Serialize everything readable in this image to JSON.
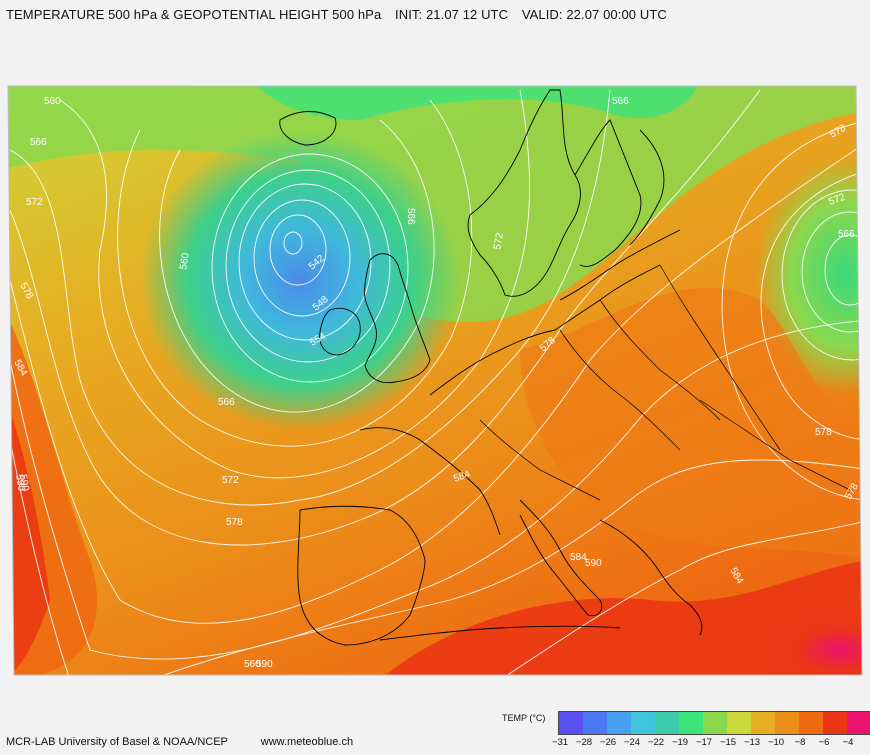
{
  "header": {
    "title": "TEMPERATURE 500 hPa & GEOPOTENTIAL HEIGHT 500 hPa",
    "init": "INIT: 21.07   12 UTC",
    "valid": "VALID:  22.07 00:00 UTC"
  },
  "footer": {
    "credits": "MCR-LAB University of Basel  &  NOAA/NCEP",
    "url": "www.meteoblue.ch"
  },
  "legend": {
    "title": "TEMP (°C)",
    "colors": [
      "#5a50f0",
      "#4a78f0",
      "#4aa0f0",
      "#40c4dc",
      "#3ccaa8",
      "#3ce27a",
      "#8ad84e",
      "#cad83a",
      "#e6ae22",
      "#ec8e1a",
      "#ee6a12",
      "#ea3614",
      "#ec146e"
    ],
    "ticks": [
      "−31",
      "−28",
      "−26",
      "−24",
      "−22",
      "−19",
      "−17",
      "−15",
      "−13",
      "−10",
      "−8",
      "−6",
      "−4"
    ]
  },
  "map": {
    "contour_labels": [
      {
        "text": "560"
      },
      {
        "text": "566"
      },
      {
        "text": "572"
      },
      {
        "text": "578"
      },
      {
        "text": "584"
      },
      {
        "text": "590"
      },
      {
        "text": "572"
      },
      {
        "text": "578"
      },
      {
        "text": "584"
      },
      {
        "text": "560"
      },
      {
        "text": "542"
      },
      {
        "text": "548"
      },
      {
        "text": "554"
      },
      {
        "text": "566"
      },
      {
        "text": "566"
      },
      {
        "text": "572"
      },
      {
        "text": "578"
      },
      {
        "text": "584"
      },
      {
        "text": "590"
      },
      {
        "text": "584"
      },
      {
        "text": "566"
      },
      {
        "text": "578"
      },
      {
        "text": "572"
      },
      {
        "text": "566"
      },
      {
        "text": "578"
      },
      {
        "text": "578"
      },
      {
        "text": "590"
      },
      {
        "text": "560"
      },
      {
        "text": "590"
      }
    ]
  }
}
